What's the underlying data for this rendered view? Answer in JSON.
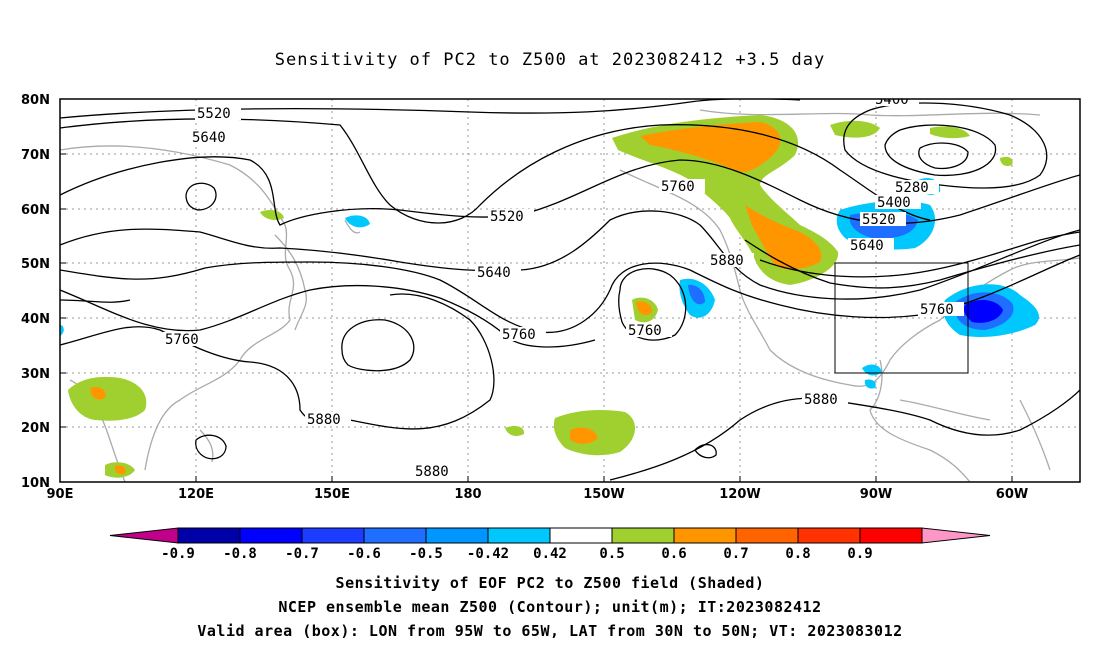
{
  "title": "Sensitivity of PC2 to Z500 at 2023082412 +3.5 day",
  "lat_labels": [
    "80N",
    "70N",
    "60N",
    "50N",
    "40N",
    "30N",
    "20N",
    "10N"
  ],
  "lon_labels": [
    "90E",
    "120E",
    "150E",
    "180",
    "150W",
    "120W",
    "90W",
    "60W"
  ],
  "contour_labels": [
    "5400",
    "5520",
    "5640",
    "5760",
    "5880",
    "5280",
    "5400",
    "5520",
    "5640",
    "5760",
    "5880",
    "5520",
    "5640",
    "5760",
    "5760",
    "5880",
    "5880",
    "5760"
  ],
  "colorbar": {
    "labels": [
      "-0.9",
      "-0.8",
      "-0.7",
      "-0.6",
      "-0.5",
      "-0.42",
      "0.42",
      "0.5",
      "0.6",
      "0.7",
      "0.8",
      "0.9"
    ],
    "colors": [
      "#c0008a",
      "#0000a8",
      "#0000ff",
      "#1c3cff",
      "#1e6eff",
      "#0096ff",
      "#00c8ff",
      "#ffffff",
      "#a0d030",
      "#ff9600",
      "#ff6400",
      "#ff3200",
      "#ff0000",
      "#ff96c8"
    ]
  },
  "valid_box": {
    "lon_from": "95W",
    "lon_to": "65W",
    "lat_from": "30N",
    "lat_to": "50N"
  },
  "captions": [
    "Sensitivity of EOF PC2 to Z500 field (Shaded)",
    "NCEP ensemble mean Z500 (Contour); unit(m); IT:2023082412",
    "Valid area (box): LON from 95W to 65W, LAT from 30N to 50N; VT: 2023083012"
  ]
}
